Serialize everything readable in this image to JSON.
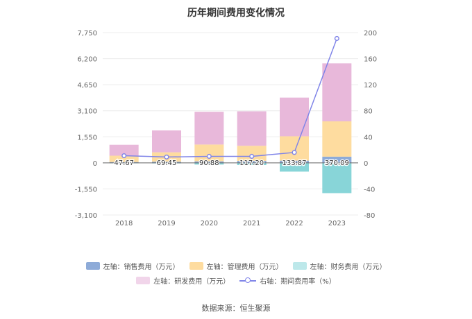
{
  "title": "历年期间费用变化情况",
  "source": "数据来源：恒生聚源",
  "chart_data": {
    "type": "bar",
    "stacked": true,
    "categories": [
      "2018",
      "2019",
      "2020",
      "2021",
      "2022",
      "2023"
    ],
    "left_axis": {
      "ticks": [
        "7,750",
        "6,200",
        "4,650",
        "3,100",
        "1,550",
        "0",
        "-1,550",
        "-3,100"
      ],
      "ylim": [
        -3100,
        7750
      ]
    },
    "right_axis": {
      "ticks": [
        "200",
        "160",
        "120",
        "80",
        "40",
        "0",
        "-40",
        "-80"
      ],
      "ylim": [
        -80,
        200
      ]
    },
    "series": [
      {
        "name": "左轴：销售费用（万元）",
        "axis": "left",
        "color": "#8eabd8",
        "values": [
          47.67,
          69.45,
          90.88,
          117.2,
          133.87,
          370.09
        ],
        "labels": [
          "47.67",
          "69.45",
          "90.88",
          "117.20",
          "133.87",
          "370.09"
        ]
      },
      {
        "name": "左轴：管理费用（万元）",
        "axis": "left",
        "color": "#fedc9f",
        "values": [
          380,
          560,
          1000,
          900,
          1450,
          2100
        ]
      },
      {
        "name": "左轴：财务费用（万元）",
        "axis": "left",
        "color": "#88d5d8",
        "values": [
          -20,
          -30,
          -100,
          -130,
          -520,
          -1800
        ]
      },
      {
        "name": "左轴：研发费用（万元）",
        "axis": "left",
        "color": "#e8b8da",
        "values": [
          650,
          1300,
          1950,
          2050,
          2300,
          3450
        ]
      },
      {
        "name": "右轴：期间费用率（%）",
        "axis": "right",
        "type": "line",
        "color": "#8085e8",
        "values": [
          11,
          9,
          10,
          10,
          16,
          191
        ]
      }
    ]
  }
}
